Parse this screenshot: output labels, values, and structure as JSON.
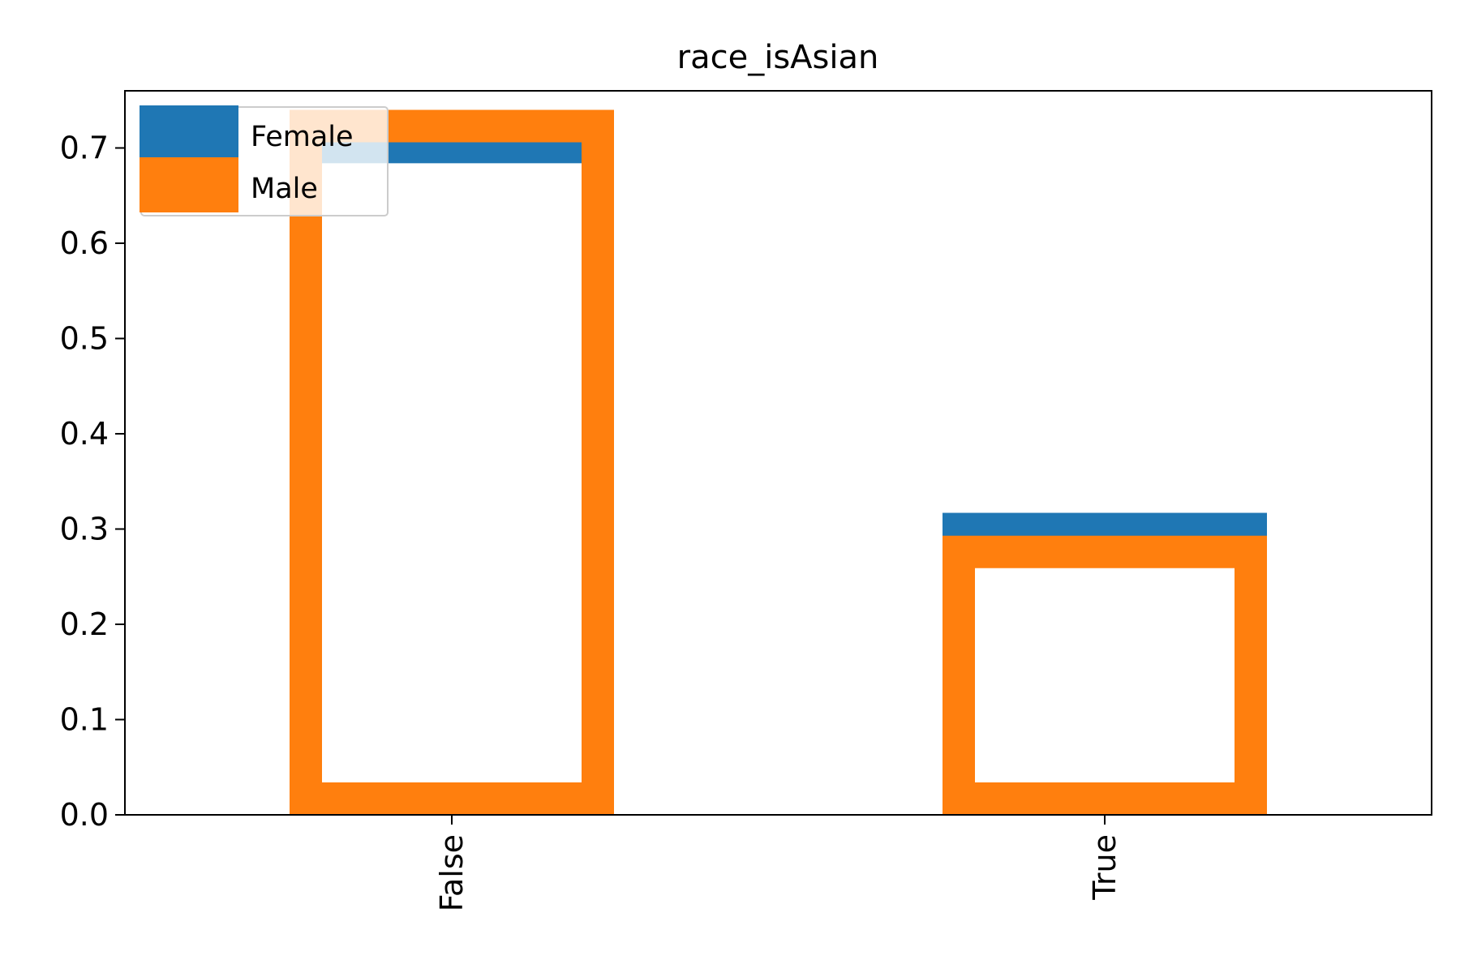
{
  "chart_data": {
    "type": "bar",
    "title": "race_isAsian",
    "xlabel": "",
    "ylabel": "",
    "categories": [
      "False",
      "True"
    ],
    "series": [
      {
        "name": "Female",
        "values": [
          0.718,
          0.317
        ]
      },
      {
        "name": "Male",
        "values": [
          0.74,
          0.293
        ]
      }
    ],
    "ylim": [
      0,
      0.76
    ],
    "yticks": [
      "0.0",
      "0.1",
      "0.2",
      "0.3",
      "0.4",
      "0.5",
      "0.6",
      "0.7"
    ],
    "ytick_values": [
      0,
      0.1,
      0.2,
      0.3,
      0.4,
      0.5,
      0.6,
      0.7
    ],
    "grid": false,
    "legend_placement": "upper-left",
    "bar_style": "outlined-step",
    "xtick_rotation": "vertical"
  },
  "colors": {
    "Female": "#1f77b4",
    "Male": "#ff7f0e",
    "axes": "#000000",
    "background": "#ffffff",
    "legend_border": "#cccccc"
  }
}
